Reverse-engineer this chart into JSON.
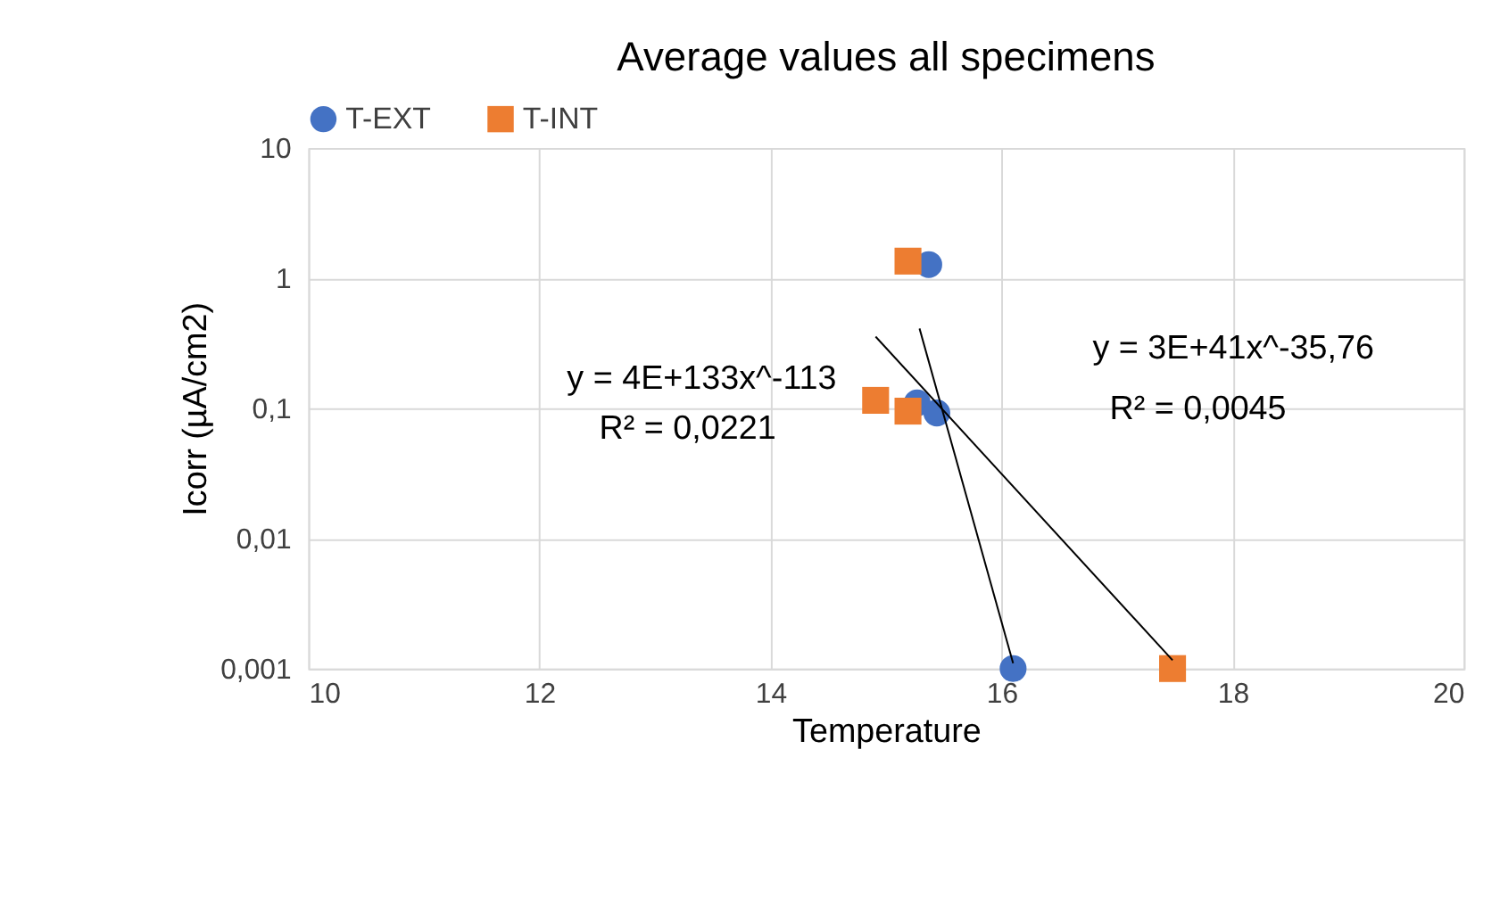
{
  "chart_data": {
    "type": "scatter",
    "title": "Average values all specimens",
    "xlabel": "Temperature",
    "ylabel": "Icorr (µA/cm2)",
    "xlim": [
      10,
      20
    ],
    "xticks": [
      10,
      12,
      14,
      16,
      18,
      20
    ],
    "ylim": [
      0.001,
      10
    ],
    "yticks": [
      {
        "value": 0.001,
        "label": "0,001"
      },
      {
        "value": 0.01,
        "label": "0,01"
      },
      {
        "value": 0.1,
        "label": "0,1"
      },
      {
        "value": 1,
        "label": "1"
      },
      {
        "value": 10,
        "label": "10"
      }
    ],
    "log": "y",
    "grid": true,
    "legend": "top",
    "series": [
      {
        "name": "T-EXT",
        "color": "#4472c4",
        "marker": "circle",
        "x": [
          15.37,
          15.27,
          15.44,
          16.1
        ],
        "values": [
          1.27,
          0.11,
          0.092,
          0.001
        ]
      },
      {
        "name": "T-INT",
        "color": "#ed7d31",
        "marker": "square",
        "x": [
          15.19,
          14.91,
          15.19,
          17.48
        ],
        "values": [
          1.35,
          0.115,
          0.095,
          0.001
        ]
      },
      {
        "type": "line",
        "color": "#000000",
        "line_style": "solid",
        "x": [
          15.29,
          16.1
        ],
        "values": [
          0.41,
          0.0011
        ]
      },
      {
        "type": "line",
        "color": "#000000",
        "line_style": "solid",
        "x": [
          14.91,
          17.48
        ],
        "values": [
          0.355,
          0.00116
        ]
      }
    ],
    "annotations": [
      "y = 4E+133x^-113",
      "R² = 0,0221",
      "y = 3E+41x^-35,76",
      "R² = 0,0045"
    ]
  }
}
